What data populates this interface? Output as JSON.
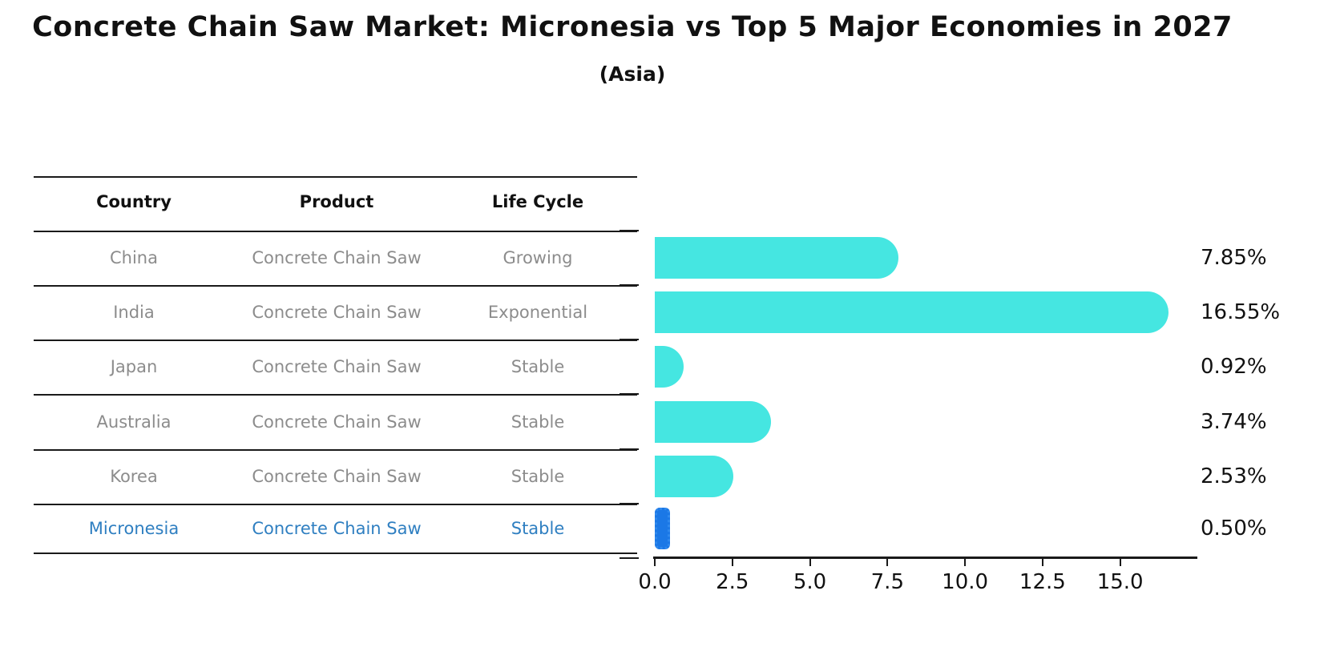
{
  "header": {
    "title": "Concrete Chain Saw Market: Micronesia vs Top 5 Major Economies in 2027",
    "subtitle": "(Asia)"
  },
  "table": {
    "columns": [
      "Country",
      "Product",
      "Life Cycle"
    ]
  },
  "chart_data": {
    "type": "bar",
    "orientation": "horizontal",
    "title": "Concrete Chain Saw Market: Micronesia vs Top 5 Major Economies in 2027",
    "subtitle": "(Asia)",
    "categories": [
      "China",
      "India",
      "Japan",
      "Australia",
      "Korea",
      "Micronesia"
    ],
    "values": [
      7.85,
      16.55,
      0.92,
      3.74,
      2.53,
      0.5
    ],
    "value_labels": [
      "7.85%",
      "16.55%",
      "0.92%",
      "3.74%",
      "2.53%",
      "0.50%"
    ],
    "rows": [
      {
        "country": "China",
        "product": "Concrete Chain Saw",
        "life_cycle": "Growing",
        "value": 7.85,
        "label": "7.85%",
        "highlight": false
      },
      {
        "country": "India",
        "product": "Concrete Chain Saw",
        "life_cycle": "Exponential",
        "value": 16.55,
        "label": "16.55%",
        "highlight": false
      },
      {
        "country": "Japan",
        "product": "Concrete Chain Saw",
        "life_cycle": "Stable",
        "value": 0.92,
        "label": "0.92%",
        "highlight": false
      },
      {
        "country": "Australia",
        "product": "Concrete Chain Saw",
        "life_cycle": "Stable",
        "value": 3.74,
        "label": "3.74%",
        "highlight": false
      },
      {
        "country": "Korea",
        "product": "Concrete Chain Saw",
        "life_cycle": "Stable",
        "value": 2.53,
        "label": "2.53%",
        "highlight": false
      },
      {
        "country": "Micronesia",
        "product": "Concrete Chain Saw",
        "life_cycle": "Stable",
        "value": 0.5,
        "label": "0.50%",
        "highlight": true
      }
    ],
    "x_ticks": [
      {
        "value": 0,
        "label": "0.0"
      },
      {
        "value": 2.5,
        "label": "2.5"
      },
      {
        "value": 5,
        "label": "5.0"
      },
      {
        "value": 7.5,
        "label": "7.5"
      },
      {
        "value": 10,
        "label": "10.0"
      },
      {
        "value": 12.5,
        "label": "12.5"
      },
      {
        "value": 15,
        "label": "15.0"
      }
    ],
    "xlim": [
      0,
      17.5
    ],
    "legend": "none",
    "grid": false,
    "colors": {
      "bar": "#45e6e1",
      "highlight_bar_fill": "#1b78e6",
      "highlight_bar_edge": "#2f89ee",
      "highlight_text": "#2f7fc1",
      "row_text": "#8c8c8c",
      "axis": "#1a1a1a"
    }
  }
}
